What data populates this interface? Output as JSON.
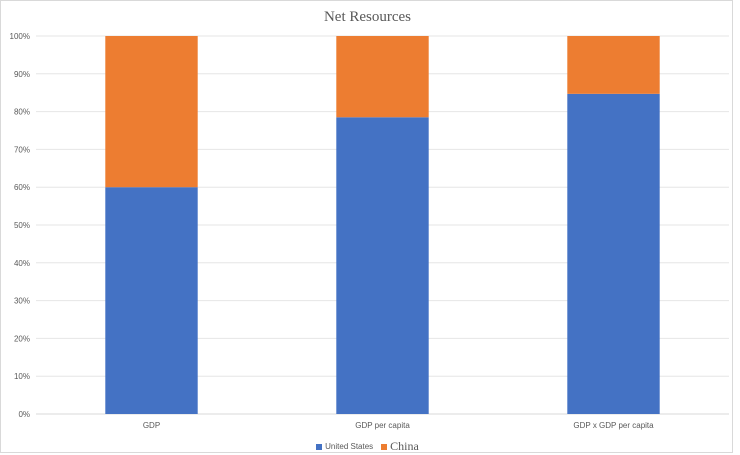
{
  "chart_data": {
    "type": "bar",
    "stacked": true,
    "normalized": true,
    "title": "Net Resources",
    "categories": [
      "GDP",
      "GDP per capita",
      "GDP x GDP per capita"
    ],
    "series": [
      {
        "name": "United States",
        "color": "#4472c4",
        "values": [
          60,
          78.5,
          84.7
        ]
      },
      {
        "name": "China",
        "color": "#ed7d31",
        "values": [
          40,
          21.5,
          15.3
        ]
      }
    ],
    "y_ticks": [
      "0%",
      "10%",
      "20%",
      "30%",
      "40%",
      "50%",
      "60%",
      "70%",
      "80%",
      "90%",
      "100%"
    ],
    "ylim": [
      0,
      100
    ],
    "grid": true,
    "legend_position": "bottom"
  }
}
